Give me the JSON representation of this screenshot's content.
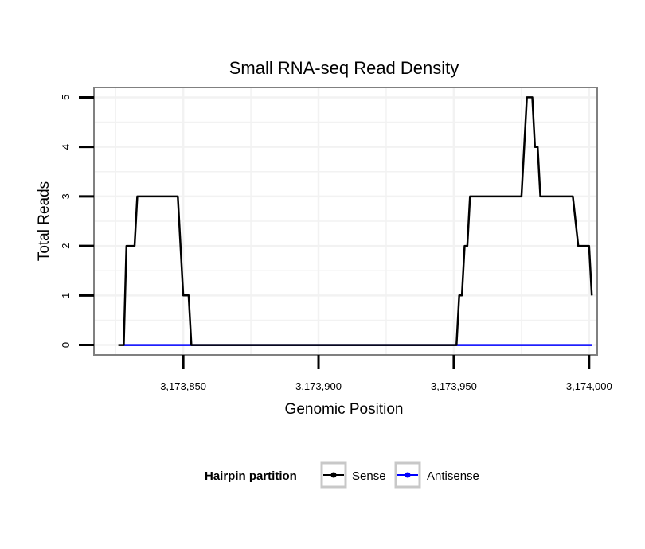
{
  "chart_data": {
    "type": "line",
    "title": "Small RNA-seq Read Density",
    "xlabel": "Genomic Position",
    "ylabel": "Total Reads",
    "xlim": [
      3173817,
      3174003
    ],
    "ylim": [
      -0.2,
      5.2
    ],
    "x_ticks": [
      3173850,
      3173900,
      3173950,
      3174000
    ],
    "x_tick_labels": [
      "3,173,850",
      "3,173,900",
      "3,173,950",
      "3,174,000"
    ],
    "y_ticks": [
      0,
      1,
      2,
      3,
      4,
      5
    ],
    "y_tick_labels": [
      "0",
      "1",
      "2",
      "3",
      "4",
      "5"
    ],
    "grid": true,
    "legend": {
      "title": "Hairpin partition",
      "position": "bottom",
      "entries": [
        {
          "name": "Sense",
          "color": "#000000"
        },
        {
          "name": "Antisense",
          "color": "#0000ff"
        }
      ]
    },
    "series": [
      {
        "name": "Sense",
        "color": "#000000",
        "points": [
          [
            3173826,
            0
          ],
          [
            3173828,
            0
          ],
          [
            3173829,
            2
          ],
          [
            3173832,
            2
          ],
          [
            3173833,
            3
          ],
          [
            3173848,
            3
          ],
          [
            3173850,
            1
          ],
          [
            3173852,
            1
          ],
          [
            3173853,
            0
          ],
          [
            3173951,
            0
          ],
          [
            3173952,
            1
          ],
          [
            3173953,
            1
          ],
          [
            3173954,
            2
          ],
          [
            3173955,
            2
          ],
          [
            3173956,
            3
          ],
          [
            3173975,
            3
          ],
          [
            3173977,
            5
          ],
          [
            3173979,
            5
          ],
          [
            3173980,
            4
          ],
          [
            3173981,
            4
          ],
          [
            3173982,
            3
          ],
          [
            3173994,
            3
          ],
          [
            3173996,
            2
          ],
          [
            3174000,
            2
          ],
          [
            3174001,
            1
          ]
        ]
      },
      {
        "name": "Antisense",
        "color": "#0000ff",
        "points": [
          [
            3173828,
            0
          ],
          [
            3174001,
            0
          ]
        ]
      }
    ]
  }
}
